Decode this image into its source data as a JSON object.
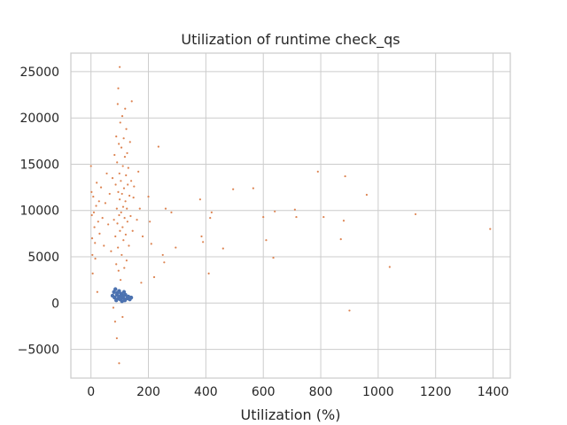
{
  "chart_data": {
    "type": "scatter",
    "title": "Utilization of runtime check_qs",
    "xlabel": "Utilization (%)",
    "ylabel": "",
    "xlim": [
      -70,
      1460
    ],
    "ylim": [
      -8100,
      27000
    ],
    "x_ticks": [
      0,
      200,
      400,
      600,
      800,
      1000,
      1200,
      1400
    ],
    "y_ticks": [
      -5000,
      0,
      5000,
      10000,
      15000,
      20000,
      25000
    ],
    "x_tick_labels": [
      "0",
      "200",
      "400",
      "600",
      "800",
      "1000",
      "1200",
      "1400"
    ],
    "y_tick_labels": [
      "−5000",
      "0",
      "5000",
      "10000",
      "15000",
      "20000",
      "25000"
    ],
    "grid": true,
    "legend": "none",
    "series": [
      {
        "color": "#4c72b0",
        "description_of_density": "dense cluster near y=0 for x 75..140",
        "points": [
          [
            75,
            800
          ],
          [
            80,
            1200
          ],
          [
            82,
            600
          ],
          [
            85,
            1500
          ],
          [
            88,
            300
          ],
          [
            90,
            900
          ],
          [
            92,
            1100
          ],
          [
            95,
            500
          ],
          [
            98,
            1300
          ],
          [
            100,
            700
          ],
          [
            102,
            400
          ],
          [
            105,
            1000
          ],
          [
            108,
            200
          ],
          [
            110,
            800
          ],
          [
            112,
            600
          ],
          [
            115,
            1200
          ],
          [
            118,
            300
          ],
          [
            120,
            900
          ],
          [
            125,
            500
          ],
          [
            130,
            700
          ],
          [
            135,
            400
          ],
          [
            140,
            600
          ]
        ]
      },
      {
        "color": "#dd8452",
        "points": [
          [
            0,
            14800
          ],
          [
            2,
            12000
          ],
          [
            3,
            9500
          ],
          [
            4,
            7000
          ],
          [
            5,
            5200
          ],
          [
            6,
            3200
          ],
          [
            8,
            11500
          ],
          [
            10,
            9800
          ],
          [
            12,
            8200
          ],
          [
            14,
            6500
          ],
          [
            15,
            4800
          ],
          [
            18,
            10500
          ],
          [
            20,
            13000
          ],
          [
            22,
            1200
          ],
          [
            25,
            8800
          ],
          [
            28,
            11000
          ],
          [
            30,
            7500
          ],
          [
            35,
            12500
          ],
          [
            40,
            9200
          ],
          [
            45,
            6200
          ],
          [
            50,
            10800
          ],
          [
            55,
            14000
          ],
          [
            60,
            8500
          ],
          [
            65,
            11800
          ],
          [
            70,
            5600
          ],
          [
            75,
            13500
          ],
          [
            78,
            -500
          ],
          [
            80,
            9000
          ],
          [
            82,
            16000
          ],
          [
            84,
            -2000
          ],
          [
            85,
            7200
          ],
          [
            86,
            12800
          ],
          [
            88,
            18000
          ],
          [
            88,
            4200
          ],
          [
            90,
            10200
          ],
          [
            90,
            -3800
          ],
          [
            91,
            15200
          ],
          [
            92,
            8600
          ],
          [
            93,
            21500
          ],
          [
            94,
            6000
          ],
          [
            95,
            12000
          ],
          [
            95,
            23200
          ],
          [
            96,
            3500
          ],
          [
            97,
            17200
          ],
          [
            98,
            9500
          ],
          [
            98,
            -6500
          ],
          [
            99,
            14000
          ],
          [
            100,
            25500
          ],
          [
            100,
            11200
          ],
          [
            101,
            7800
          ],
          [
            102,
            19500
          ],
          [
            103,
            2500
          ],
          [
            104,
            13200
          ],
          [
            105,
            9800
          ],
          [
            106,
            16800
          ],
          [
            107,
            5200
          ],
          [
            108,
            11800
          ],
          [
            109,
            20200
          ],
          [
            110,
            8200
          ],
          [
            110,
            -1500
          ],
          [
            111,
            14800
          ],
          [
            112,
            10400
          ],
          [
            113,
            6800
          ],
          [
            114,
            17800
          ],
          [
            115,
            12400
          ],
          [
            116,
            3800
          ],
          [
            117,
            9200
          ],
          [
            118,
            15800
          ],
          [
            119,
            21000
          ],
          [
            120,
            11000
          ],
          [
            121,
            7400
          ],
          [
            122,
            13800
          ],
          [
            123,
            18800
          ],
          [
            124,
            4600
          ],
          [
            125,
            10200
          ],
          [
            126,
            16200
          ],
          [
            127,
            8800
          ],
          [
            128,
            12800
          ],
          [
            130,
            14600
          ],
          [
            132,
            6200
          ],
          [
            134,
            11600
          ],
          [
            136,
            17400
          ],
          [
            138,
            9400
          ],
          [
            140,
            13200
          ],
          [
            142,
            21800
          ],
          [
            145,
            7800
          ],
          [
            148,
            11400
          ],
          [
            150,
            12600
          ],
          [
            160,
            9000
          ],
          [
            165,
            14200
          ],
          [
            170,
            10200
          ],
          [
            175,
            2200
          ],
          [
            180,
            7200
          ],
          [
            200,
            11500
          ],
          [
            205,
            8800
          ],
          [
            210,
            6400
          ],
          [
            220,
            2800
          ],
          [
            235,
            16900
          ],
          [
            250,
            5200
          ],
          [
            255,
            4400
          ],
          [
            260,
            10200
          ],
          [
            280,
            9800
          ],
          [
            295,
            6000
          ],
          [
            380,
            11200
          ],
          [
            385,
            7200
          ],
          [
            390,
            6600
          ],
          [
            410,
            3200
          ],
          [
            415,
            9200
          ],
          [
            420,
            9800
          ],
          [
            460,
            5900
          ],
          [
            495,
            12300
          ],
          [
            565,
            12400
          ],
          [
            600,
            9300
          ],
          [
            610,
            6800
          ],
          [
            635,
            4900
          ],
          [
            640,
            9900
          ],
          [
            710,
            10100
          ],
          [
            715,
            9300
          ],
          [
            790,
            14200
          ],
          [
            810,
            9300
          ],
          [
            870,
            6900
          ],
          [
            880,
            8900
          ],
          [
            885,
            13700
          ],
          [
            900,
            -800
          ],
          [
            960,
            11700
          ],
          [
            1040,
            3900
          ],
          [
            1130,
            9600
          ],
          [
            1390,
            8000
          ]
        ]
      }
    ]
  }
}
